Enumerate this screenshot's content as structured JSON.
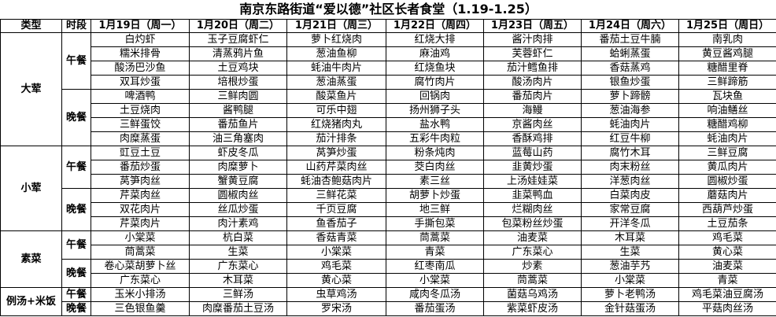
{
  "title": "南京东路街道“爱以德”社区长者食堂（1.19-1.25）",
  "headers": [
    "类型",
    "时段",
    "1月19日（周一）",
    "1月20日（周二）",
    "1月21日（周三）",
    "1月22日（周四）",
    "1月23日（周五）",
    "1月24日（周六）",
    "1月25日（周日）"
  ],
  "groups": [
    {
      "type": "大荤",
      "meals": [
        {
          "period": "午餐",
          "rows": [
            [
              "白灼虾",
              "玉子豆腐虾仁",
              "萝卜红烧肉",
              "红烧大排",
              "酱汁肉排",
              "番茄土豆牛腩",
              "南乳肉"
            ],
            [
              "糯米排骨",
              "清蒸鸦片鱼",
              "葱油鱼柳",
              "麻油鸡",
              "芙蓉虾仁",
              "蛤蜊蒸蛋",
              "黄豆酱鸡腿"
            ],
            [
              "酸汤巴沙鱼",
              "土豆鸡块",
              "蚝油牛肉片",
              "红烧鱼块",
              "茄汁鳕鱼排",
              "香菇蒸鸡",
              "糖醋里脊"
            ],
            [
              "双耳炒蛋",
              "培根炒蛋",
              "葱油蒸蛋",
              "腐竹肉片",
              "酸汤肉片",
              "银鱼炒蛋",
              "三鲜蹄筋"
            ]
          ]
        },
        {
          "period": "晚餐",
          "rows": [
            [
              "啤酒鸭",
              "三鲜肉圆",
              "酸菜鱼片",
              "回锅肉",
              "番茄肉片",
              "萝卜蹄髈",
              "瓦块鱼"
            ],
            [
              "土豆烧肉",
              "酱鸭腿",
              "可乐中翅",
              "扬州狮子头",
              "海鳗",
              "葱油海参",
              "响油鳝丝"
            ],
            [
              "三鲜蛋饺",
              "番茄鱼片",
              "红烧猪肉丸",
              "盐水鸭",
              "京酱肉丝",
              "蚝油肉片",
              "糖醋鸡柳"
            ],
            [
              "肉糜蒸蛋",
              "油三角塞肉",
              "茄汁排条",
              "五彩牛肉粒",
              "香酥鸡排",
              "红豆牛柳",
              "蚝油肉片"
            ]
          ]
        }
      ]
    },
    {
      "type": "小荤",
      "meals": [
        {
          "period": "午餐",
          "rows": [
            [
              "豇豆土豆",
              "虾皮冬瓜",
              "莴笋炒蛋",
              "粉条炖肉",
              "蓝莓山药",
              "腐竹木耳",
              "三鲜豆腐"
            ],
            [
              "番茄炒蛋",
              "肉糜萝卜",
              "山药芹菜肉丝",
              "茭白肉丝",
              "韭黄炒蛋",
              "肉末粉丝",
              "黄瓜肉片"
            ],
            [
              "莴笋肉丝",
              "蟹黄豆腐",
              "蚝油杏鲍菇肉片",
              "素三丝",
              "上汤娃娃菜",
              "洋葱肉丝",
              "圆椒炒蛋"
            ]
          ]
        },
        {
          "period": "晚餐",
          "rows": [
            [
              "芹菜肉丝",
              "圆椒肉丝",
              "三鲜花菜",
              "胡萝卜炒蛋",
              "韭菜鸭血",
              "白菜肉皮",
              "蘑菇肉片"
            ],
            [
              "双花肉片",
              "丝瓜炒蛋",
              "千页豆腐",
              "地三鲜",
              "烂糊肉丝",
              "家常豆腐",
              "西葫芦炒蛋"
            ],
            [
              "芹菜肉片",
              "肉汁素鸡",
              "鱼香茄子",
              "手撕包菜",
              "包菜粉丝炒蛋",
              "开洋冬瓜",
              "土豆茄条"
            ]
          ]
        }
      ]
    },
    {
      "type": "素菜",
      "meals": [
        {
          "period": "午餐",
          "rows": [
            [
              "小棠菜",
              "杭白菜",
              "香菇青菜",
              "茼蒿菜",
              "油麦菜",
              "木耳菜",
              "鸡毛菜"
            ],
            [
              "茼蒿菜",
              "生菜",
              "小棠菜",
              "青菜",
              "广东菜心",
              "生菜",
              "黄心菜"
            ]
          ]
        },
        {
          "period": "晚餐",
          "rows": [
            [
              "卷心菜胡萝卜丝",
              "广东菜心",
              "鸡毛菜",
              "红枣南瓜",
              "炒素",
              "葱油芋艿",
              "油麦菜"
            ],
            [
              "广东菜心",
              "木耳菜",
              "黄心菜",
              "小棠菜",
              "茼蒿菜",
              "小棠菜",
              "青菜"
            ]
          ]
        }
      ]
    },
    {
      "type": "例汤+米饭",
      "meals": [
        {
          "period": "午餐",
          "rows": [
            [
              "玉米小排汤",
              "三鲜汤",
              "虫草鸡汤",
              "咸肉冬瓜汤",
              "菌菇乌鸡汤",
              "萝卜老鸭汤",
              "鸡毛菜油豆腐汤"
            ]
          ]
        },
        {
          "period": "晚餐",
          "rows": [
            [
              "三色银鱼羹",
              "肉糜番茄土豆汤",
              "罗宋汤",
              "番茄蛋汤",
              "紫菜虾皮汤",
              "金针菇蛋汤",
              "平菇肉丝汤"
            ]
          ]
        }
      ]
    }
  ]
}
